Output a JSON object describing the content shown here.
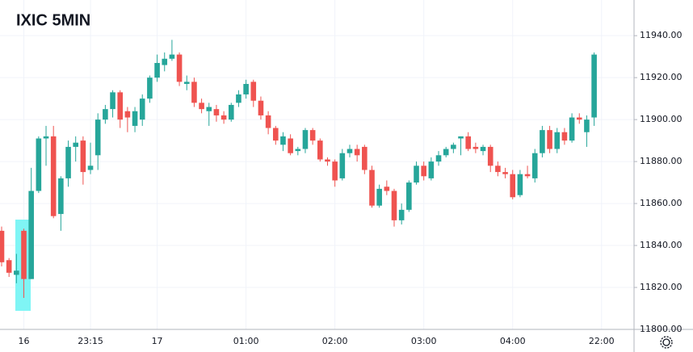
{
  "chart_data": {
    "type": "candlestick",
    "title": "IXIC 5MIN",
    "categories": [
      null,
      null,
      null,
      "16",
      null,
      null,
      null,
      null,
      null,
      null,
      null,
      null,
      "23:15",
      null,
      null,
      null,
      null,
      null,
      null,
      null,
      null,
      "17",
      null,
      null,
      null,
      null,
      null,
      null,
      null,
      null,
      null,
      null,
      null,
      "01:00",
      null,
      null,
      null,
      null,
      null,
      null,
      null,
      null,
      null,
      null,
      null,
      "02:00",
      null,
      null,
      null,
      null,
      null,
      null,
      null,
      null,
      null,
      null,
      null,
      "03:00",
      null,
      null,
      null,
      null,
      null,
      null,
      null,
      null,
      null,
      null,
      null,
      "04:00",
      null,
      null,
      null,
      null,
      null,
      null,
      null,
      null,
      null,
      null,
      null,
      "22:00"
    ],
    "open": [
      11847,
      11833,
      11826,
      11847,
      11824,
      11866,
      11891,
      11892,
      11855,
      11872,
      11887,
      11890,
      11876,
      11883,
      11900,
      11905,
      11913,
      11904,
      11897,
      11900,
      11910,
      11920,
      11926,
      11929,
      11931,
      11917,
      11918,
      11908,
      11904,
      11905,
      11902,
      11900,
      11908,
      11912,
      11918,
      11909,
      11902,
      11896,
      11888,
      11891,
      11885,
      11886,
      11895,
      11890,
      11881,
      11880,
      11872,
      11884,
      11886,
      11887,
      11876,
      11859,
      11868,
      11866,
      11852,
      11857,
      11870,
      11878,
      11872,
      11880,
      11883,
      11886,
      11891,
      11892,
      11887,
      11885,
      11887,
      11878,
      11875,
      11874,
      11864,
      11874,
      11872,
      11884,
      11895,
      11886,
      11894,
      11890,
      11901,
      11894,
      11901,
      null
    ],
    "high": [
      11849,
      11834,
      11836,
      11848,
      11877,
      11892,
      11897,
      11897,
      11873,
      11890,
      11892,
      11892,
      11889,
      11903,
      11907,
      11914,
      11914,
      11906,
      11906,
      11912,
      11921,
      11931,
      11932,
      11938,
      11932,
      11921,
      11920,
      11910,
      11908,
      11907,
      11904,
      11908,
      11914,
      11919,
      11919,
      11911,
      11904,
      11897,
      11894,
      11893,
      11887,
      11896,
      11896,
      11891,
      11882,
      11881,
      11886,
      11888,
      11888,
      11888,
      11878,
      11869,
      11871,
      11867,
      11860,
      11871,
      11880,
      11880,
      11882,
      11885,
      11887,
      11889,
      11892,
      11894,
      11889,
      11888,
      11888,
      11880,
      11877,
      11876,
      11876,
      11878,
      11886,
      11897,
      11897,
      11896,
      11896,
      11903,
      11903,
      11902,
      11932,
      null
    ],
    "low": [
      11830,
      11825,
      11822,
      11815,
      11824,
      11865,
      11878,
      11853,
      11847,
      11868,
      11880,
      11869,
      11874,
      11876,
      11898,
      11901,
      11896,
      11894,
      11894,
      11897,
      11908,
      11918,
      11923,
      11928,
      11916,
      11914,
      11906,
      11903,
      11897,
      11899,
      11898,
      11899,
      11906,
      11910,
      11906,
      11900,
      11893,
      11888,
      11885,
      11883,
      11883,
      11884,
      11888,
      11880,
      11878,
      11868,
      11871,
      11882,
      11880,
      11874,
      11858,
      11858,
      11864,
      11849,
      11850,
      11856,
      11869,
      11871,
      11871,
      11878,
      11882,
      11884,
      11883,
      11885,
      11884,
      11883,
      11875,
      11873,
      11872,
      11862,
      11863,
      11872,
      11870,
      11882,
      11884,
      11884,
      11888,
      11889,
      11898,
      11887,
      11897,
      null
    ],
    "close": [
      11832,
      11827,
      11828,
      11824,
      11866,
      11891,
      11892,
      11854,
      11872,
      11887,
      11889,
      11875,
      11878,
      11900,
      11905,
      11913,
      11900,
      11901,
      11904,
      11910,
      11920,
      11927,
      11929,
      11931,
      11918,
      11918,
      11908,
      11905,
      11906,
      11902,
      11900,
      11907,
      11912,
      11917,
      11909,
      11902,
      11896,
      11890,
      11892,
      11884,
      11886,
      11895,
      11890,
      11881,
      11880,
      11871,
      11884,
      11886,
      11883,
      11876,
      11859,
      11867,
      11866,
      11852,
      11857,
      11870,
      11878,
      11873,
      11880,
      11883,
      11886,
      11888,
      11892,
      11886,
      11886,
      11887,
      11878,
      11875,
      11874,
      11863,
      11874,
      11873,
      11884,
      11895,
      11886,
      11894,
      11890,
      11901,
      11900,
      11900,
      11931,
      null
    ],
    "up_color": "#26a69a",
    "down_color": "#ef5350",
    "ylim": [
      11800,
      11957
    ],
    "yticks": [
      {
        "value": 11800,
        "label": "11800.00"
      },
      {
        "value": 11820,
        "label": "11820.00"
      },
      {
        "value": 11840,
        "label": "11840.00"
      },
      {
        "value": 11860,
        "label": "11860.00"
      },
      {
        "value": 11880,
        "label": "11880.00"
      },
      {
        "value": 11900,
        "label": "11900.00"
      },
      {
        "value": 11920,
        "label": "11920.00"
      },
      {
        "value": 11940,
        "label": "11940.00"
      }
    ],
    "grid": true
  }
}
